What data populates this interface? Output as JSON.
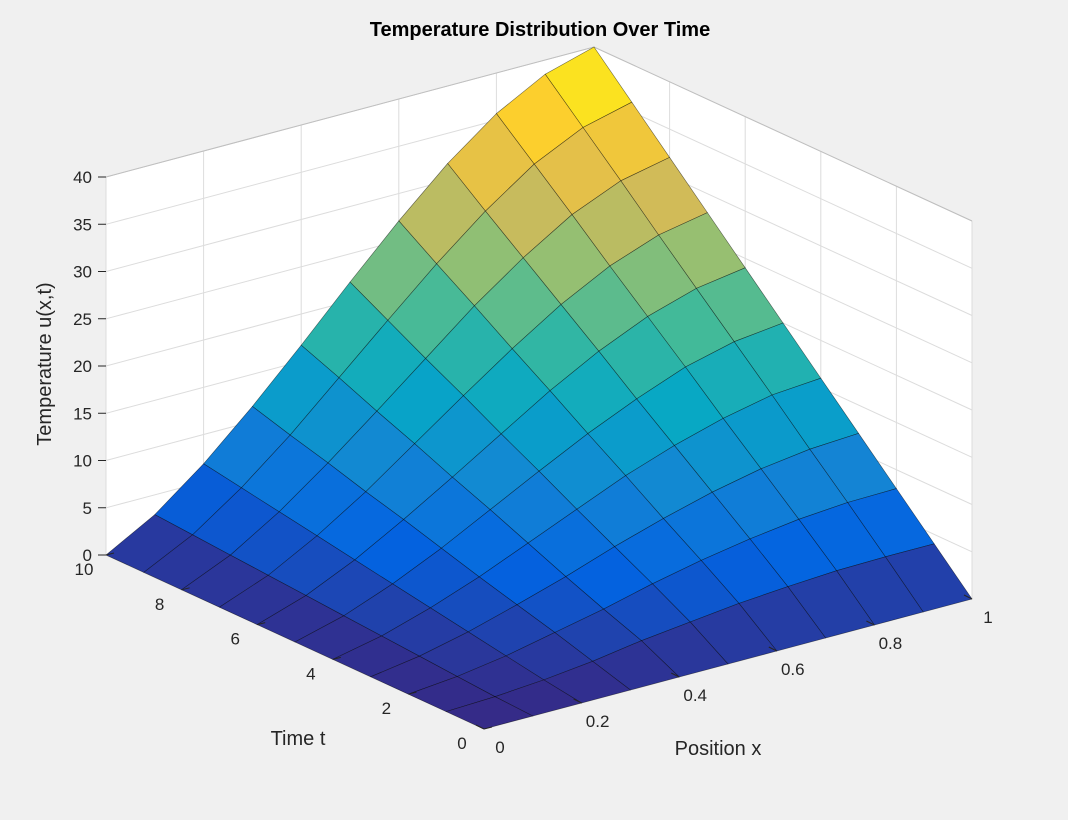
{
  "chart_data": {
    "type": "surface",
    "title": "Temperature Distribution Over Time",
    "xlabel": "Position x",
    "ylabel": "Time t",
    "zlabel": "Temperature u(x,t)",
    "xlim": [
      0,
      1
    ],
    "ylim": [
      0,
      10
    ],
    "zlim": [
      0,
      40
    ],
    "x_ticks": [
      0,
      0.2,
      0.4,
      0.6,
      0.8,
      1
    ],
    "x_tick_labels": [
      "0",
      "0.2",
      "0.4",
      "0.6",
      "0.8",
      "1"
    ],
    "y_ticks": [
      0,
      2,
      4,
      6,
      8,
      10
    ],
    "y_tick_labels": [
      "0",
      "2",
      "4",
      "6",
      "8",
      "10"
    ],
    "z_ticks": [
      0,
      5,
      10,
      15,
      20,
      25,
      30,
      35,
      40
    ],
    "z_tick_labels": [
      "0",
      "5",
      "10",
      "15",
      "20",
      "25",
      "30",
      "35",
      "40"
    ],
    "grid": true,
    "colormap": "parula",
    "background": "#f0f0f0",
    "axes_color": "#ffffff",
    "edge_color": "#000000",
    "x": [
      0,
      0.1,
      0.2,
      0.3,
      0.4,
      0.5,
      0.6,
      0.7,
      0.8,
      0.9,
      1.0
    ],
    "y": [
      0,
      1,
      2,
      3,
      4,
      5,
      6,
      7,
      8,
      9,
      10
    ],
    "z": [
      [
        0.0,
        0.0,
        0.0,
        0.0,
        0.0,
        0.0,
        0.0,
        0.0,
        0.0,
        0.0,
        0.0
      ],
      [
        0.0,
        0.2,
        0.6,
        1.2,
        2.0,
        2.6,
        3.2,
        3.6,
        3.9,
        4.0,
        4.0
      ],
      [
        0.0,
        0.5,
        1.3,
        2.4,
        3.5,
        4.8,
        5.9,
        6.8,
        7.5,
        7.9,
        8.0
      ],
      [
        0.0,
        0.8,
        2.0,
        3.5,
        5.1,
        6.9,
        8.5,
        9.9,
        11.0,
        11.7,
        12.0
      ],
      [
        0.0,
        1.1,
        2.7,
        4.6,
        6.8,
        9.0,
        11.2,
        13.0,
        14.5,
        15.6,
        16.0
      ],
      [
        0.0,
        1.4,
        3.4,
        5.8,
        8.5,
        11.2,
        13.8,
        16.1,
        18.1,
        19.4,
        20.0
      ],
      [
        0.0,
        1.7,
        4.1,
        7.0,
        10.1,
        13.3,
        16.5,
        19.3,
        21.6,
        23.2,
        24.0
      ],
      [
        0.0,
        2.0,
        4.8,
        8.1,
        11.8,
        15.5,
        19.1,
        22.4,
        25.1,
        27.0,
        28.0
      ],
      [
        0.0,
        2.3,
        5.5,
        9.3,
        13.4,
        17.6,
        21.8,
        25.5,
        28.7,
        30.9,
        32.0
      ],
      [
        0.0,
        2.6,
        6.2,
        10.4,
        15.1,
        19.8,
        24.4,
        28.6,
        32.2,
        34.7,
        36.0
      ],
      [
        0.0,
        2.9,
        6.9,
        11.6,
        16.7,
        22.0,
        27.1,
        31.8,
        35.7,
        38.5,
        40.0
      ]
    ]
  }
}
